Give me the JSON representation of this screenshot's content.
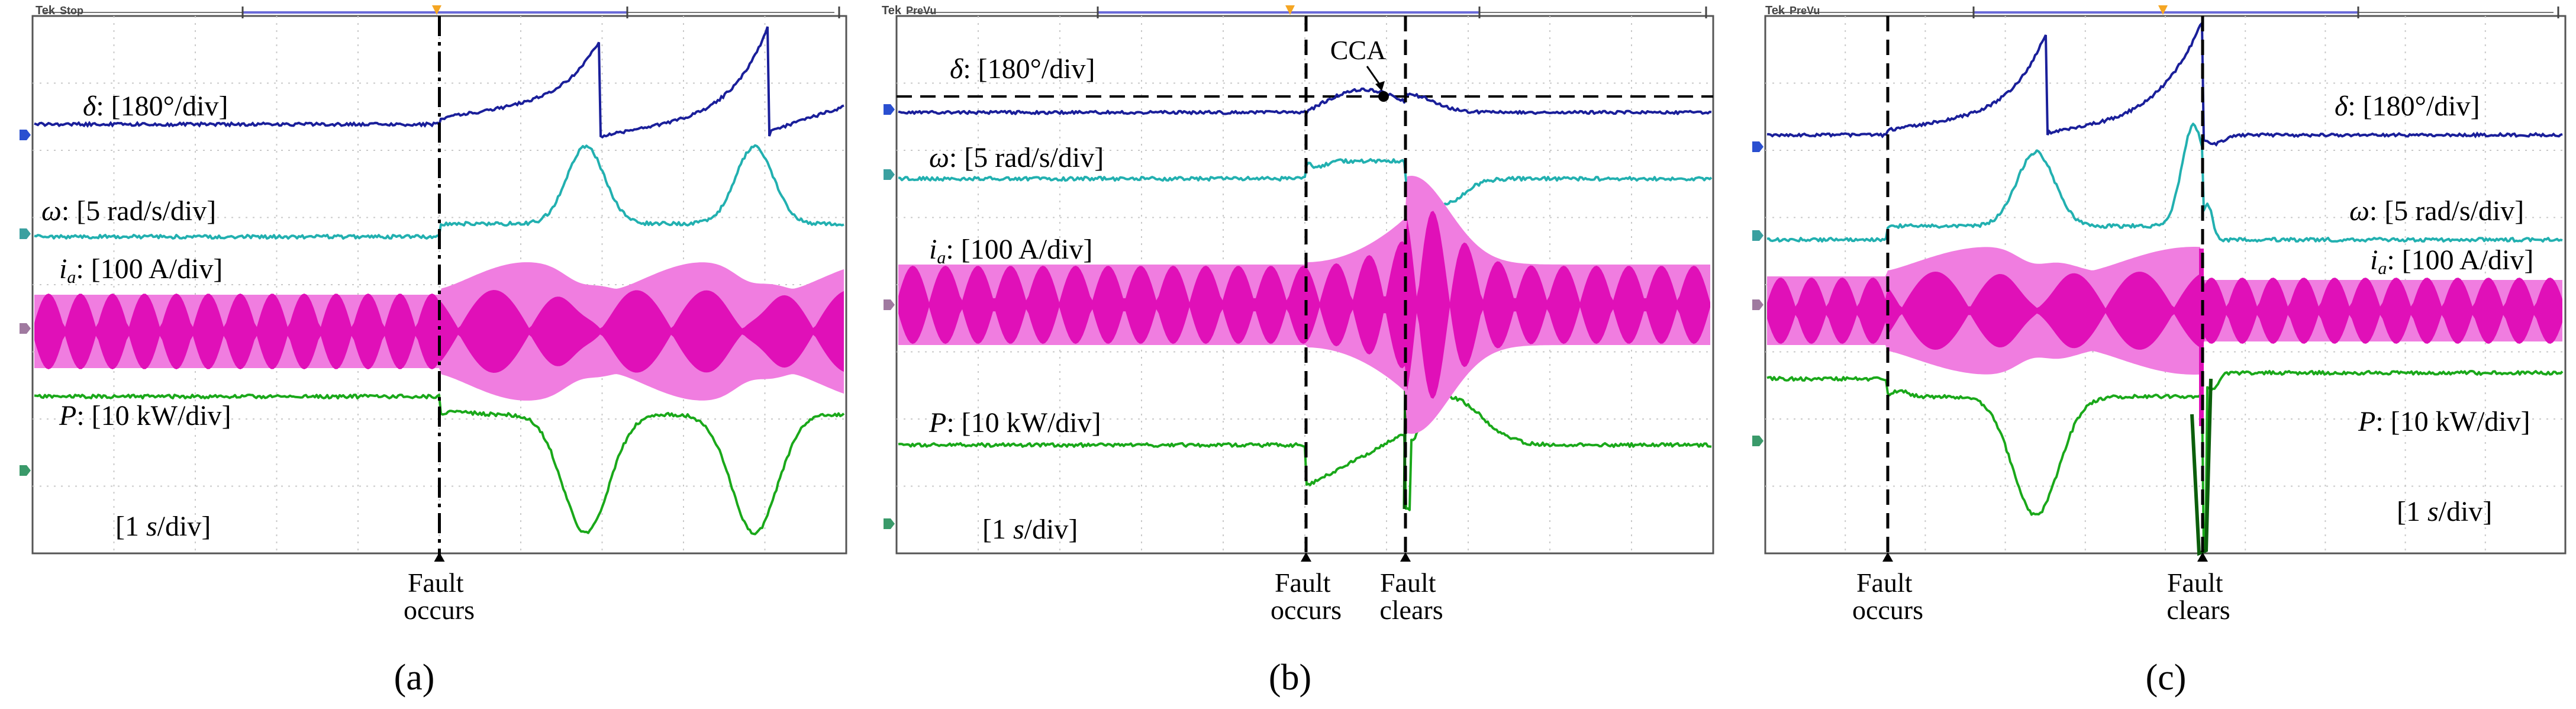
{
  "figure": {
    "type": "oscilloscope_capture_set",
    "description_labels": {
      "delta_symbol": "δ",
      "omega_symbol": "ω",
      "current_symbol": "i",
      "current_subscript": "a",
      "power_symbol": "P",
      "time_prefix": "[1 ",
      "time_unit": "s",
      "time_suffix": "/div]"
    }
  },
  "chart_data": [
    {
      "type": "line",
      "subplot_label": "(a)",
      "scope_header": "Stop",
      "time_per_div": "[1 s/div]",
      "fault_occurs_label": [
        "Fault",
        "occurs"
      ],
      "fault_clears_label": null,
      "cca_label": null,
      "channels": [
        {
          "name": "delta",
          "label": "δ: [180°/div]",
          "scale_label": "[180°/div]",
          "color": "#1a1f9a"
        },
        {
          "name": "omega",
          "label": "ω: [5 rad/s/div]",
          "scale_label": "[5 rad/s/div]",
          "color": "#22b0b0"
        },
        {
          "name": "current",
          "label": "ia: [100 A/div]",
          "scale_label": "[100 A/div]",
          "color": "#e010b8"
        },
        {
          "name": "power",
          "label": "P: [10 kW/div]",
          "scale_label": "[10 kW/div]",
          "color": "#1aa81a"
        }
      ],
      "x_range_div": [
        0,
        10
      ],
      "fault_occurs_div": 5.0,
      "fault_clears_div": null
    },
    {
      "type": "line",
      "subplot_label": "(b)",
      "scope_header": "PreVu",
      "time_per_div": "[1 s/div]",
      "fault_occurs_label": [
        "Fault",
        "occurs"
      ],
      "fault_clears_label": [
        "Fault",
        "clears"
      ],
      "cca_label": "CCA",
      "channels": [
        {
          "name": "delta",
          "label": "δ: [180°/div]",
          "scale_label": "[180°/div]",
          "color": "#1a1f9a"
        },
        {
          "name": "omega",
          "label": "ω: [5 rad/s/div]",
          "scale_label": "[5 rad/s/div]",
          "color": "#22b0b0"
        },
        {
          "name": "current",
          "label": "ia: [100 A/div]",
          "scale_label": "[100 A/div]",
          "color": "#e010b8"
        },
        {
          "name": "power",
          "label": "P: [10 kW/div]",
          "scale_label": "[10 kW/div]",
          "color": "#1aa81a"
        }
      ],
      "x_range_div": [
        0,
        10
      ],
      "fault_occurs_div": 5.0,
      "fault_clears_div": 6.25
    },
    {
      "type": "line",
      "subplot_label": "(c)",
      "scope_header": "PreVu",
      "time_per_div": "[1 s/div]",
      "fault_occurs_label": [
        "Fault",
        "occurs"
      ],
      "fault_clears_label": [
        "Fault",
        "clears"
      ],
      "cca_label": null,
      "channels": [
        {
          "name": "delta",
          "label": "δ: [180°/div]",
          "scale_label": "[180°/div]",
          "color": "#1a1f9a"
        },
        {
          "name": "omega",
          "label": "ω: [5 rad/s/div]",
          "scale_label": "[5 rad/s/div]",
          "color": "#22b0b0"
        },
        {
          "name": "current",
          "label": "ia: [100 A/div]",
          "scale_label": "[100 A/div]",
          "color": "#e010b8"
        },
        {
          "name": "power",
          "label": "P: [10 kW/div]",
          "scale_label": "[10 kW/div]",
          "color": "#1aa81a"
        }
      ],
      "x_range_div": [
        0,
        10
      ],
      "fault_occurs_div": 1.5,
      "fault_clears_div": 5.9
    }
  ]
}
